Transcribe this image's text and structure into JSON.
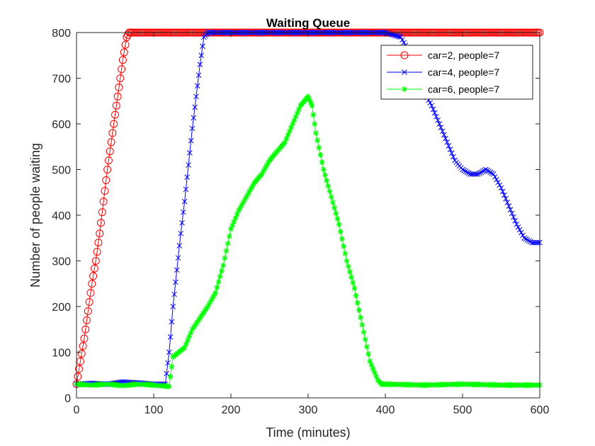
{
  "chart_data": {
    "type": "line",
    "title": "Waiting Queue",
    "xlabel": "Time (minutes)",
    "ylabel": "Number of people waiting",
    "xlim": [
      0,
      600
    ],
    "ylim": [
      0,
      800
    ],
    "xticks": [
      0,
      100,
      200,
      300,
      400,
      500,
      600
    ],
    "yticks": [
      0,
      100,
      200,
      300,
      400,
      500,
      600,
      700,
      800
    ],
    "grid": false,
    "legend_position": "top-right",
    "series": [
      {
        "name": "car=2, people=7",
        "color": "#ff0000",
        "marker": "circle",
        "x": [
          0,
          5,
          10,
          15,
          20,
          25,
          30,
          35,
          40,
          45,
          50,
          55,
          60,
          65,
          68,
          70,
          100,
          150,
          200,
          250,
          300,
          350,
          400,
          450,
          500,
          550,
          600
        ],
        "y": [
          30,
          80,
          130,
          190,
          250,
          300,
          360,
          430,
          500,
          560,
          620,
          680,
          740,
          790,
          800,
          800,
          800,
          800,
          800,
          800,
          800,
          800,
          800,
          800,
          800,
          800,
          800
        ]
      },
      {
        "name": "car=4, people=7",
        "color": "#0000ff",
        "marker": "x",
        "x": [
          0,
          20,
          40,
          60,
          80,
          100,
          115,
          120,
          125,
          130,
          135,
          140,
          145,
          150,
          155,
          160,
          165,
          170,
          200,
          250,
          300,
          350,
          400,
          420,
          430,
          440,
          450,
          460,
          470,
          480,
          490,
          500,
          510,
          520,
          530,
          540,
          550,
          560,
          570,
          580,
          590,
          600
        ],
        "y": [
          30,
          32,
          30,
          35,
          33,
          30,
          30,
          100,
          200,
          280,
          360,
          430,
          510,
          590,
          660,
          730,
          790,
          800,
          800,
          800,
          800,
          800,
          800,
          790,
          760,
          720,
          670,
          640,
          600,
          560,
          520,
          500,
          490,
          490,
          500,
          490,
          460,
          420,
          380,
          350,
          340,
          340
        ]
      },
      {
        "name": "car=6, people=7",
        "color": "#00ff00",
        "marker": "asterisk",
        "x": [
          0,
          20,
          40,
          60,
          80,
          100,
          120,
          125,
          140,
          150,
          160,
          170,
          180,
          190,
          200,
          210,
          220,
          230,
          240,
          250,
          260,
          270,
          280,
          290,
          300,
          305,
          310,
          320,
          330,
          340,
          350,
          360,
          370,
          380,
          390,
          395,
          400,
          450,
          500,
          550,
          600
        ],
        "y": [
          30,
          28,
          30,
          27,
          30,
          28,
          25,
          90,
          110,
          150,
          175,
          200,
          230,
          290,
          370,
          410,
          440,
          470,
          490,
          520,
          540,
          560,
          600,
          640,
          660,
          640,
          580,
          500,
          440,
          380,
          300,
          240,
          160,
          80,
          40,
          30,
          30,
          28,
          30,
          28,
          28
        ]
      }
    ]
  }
}
